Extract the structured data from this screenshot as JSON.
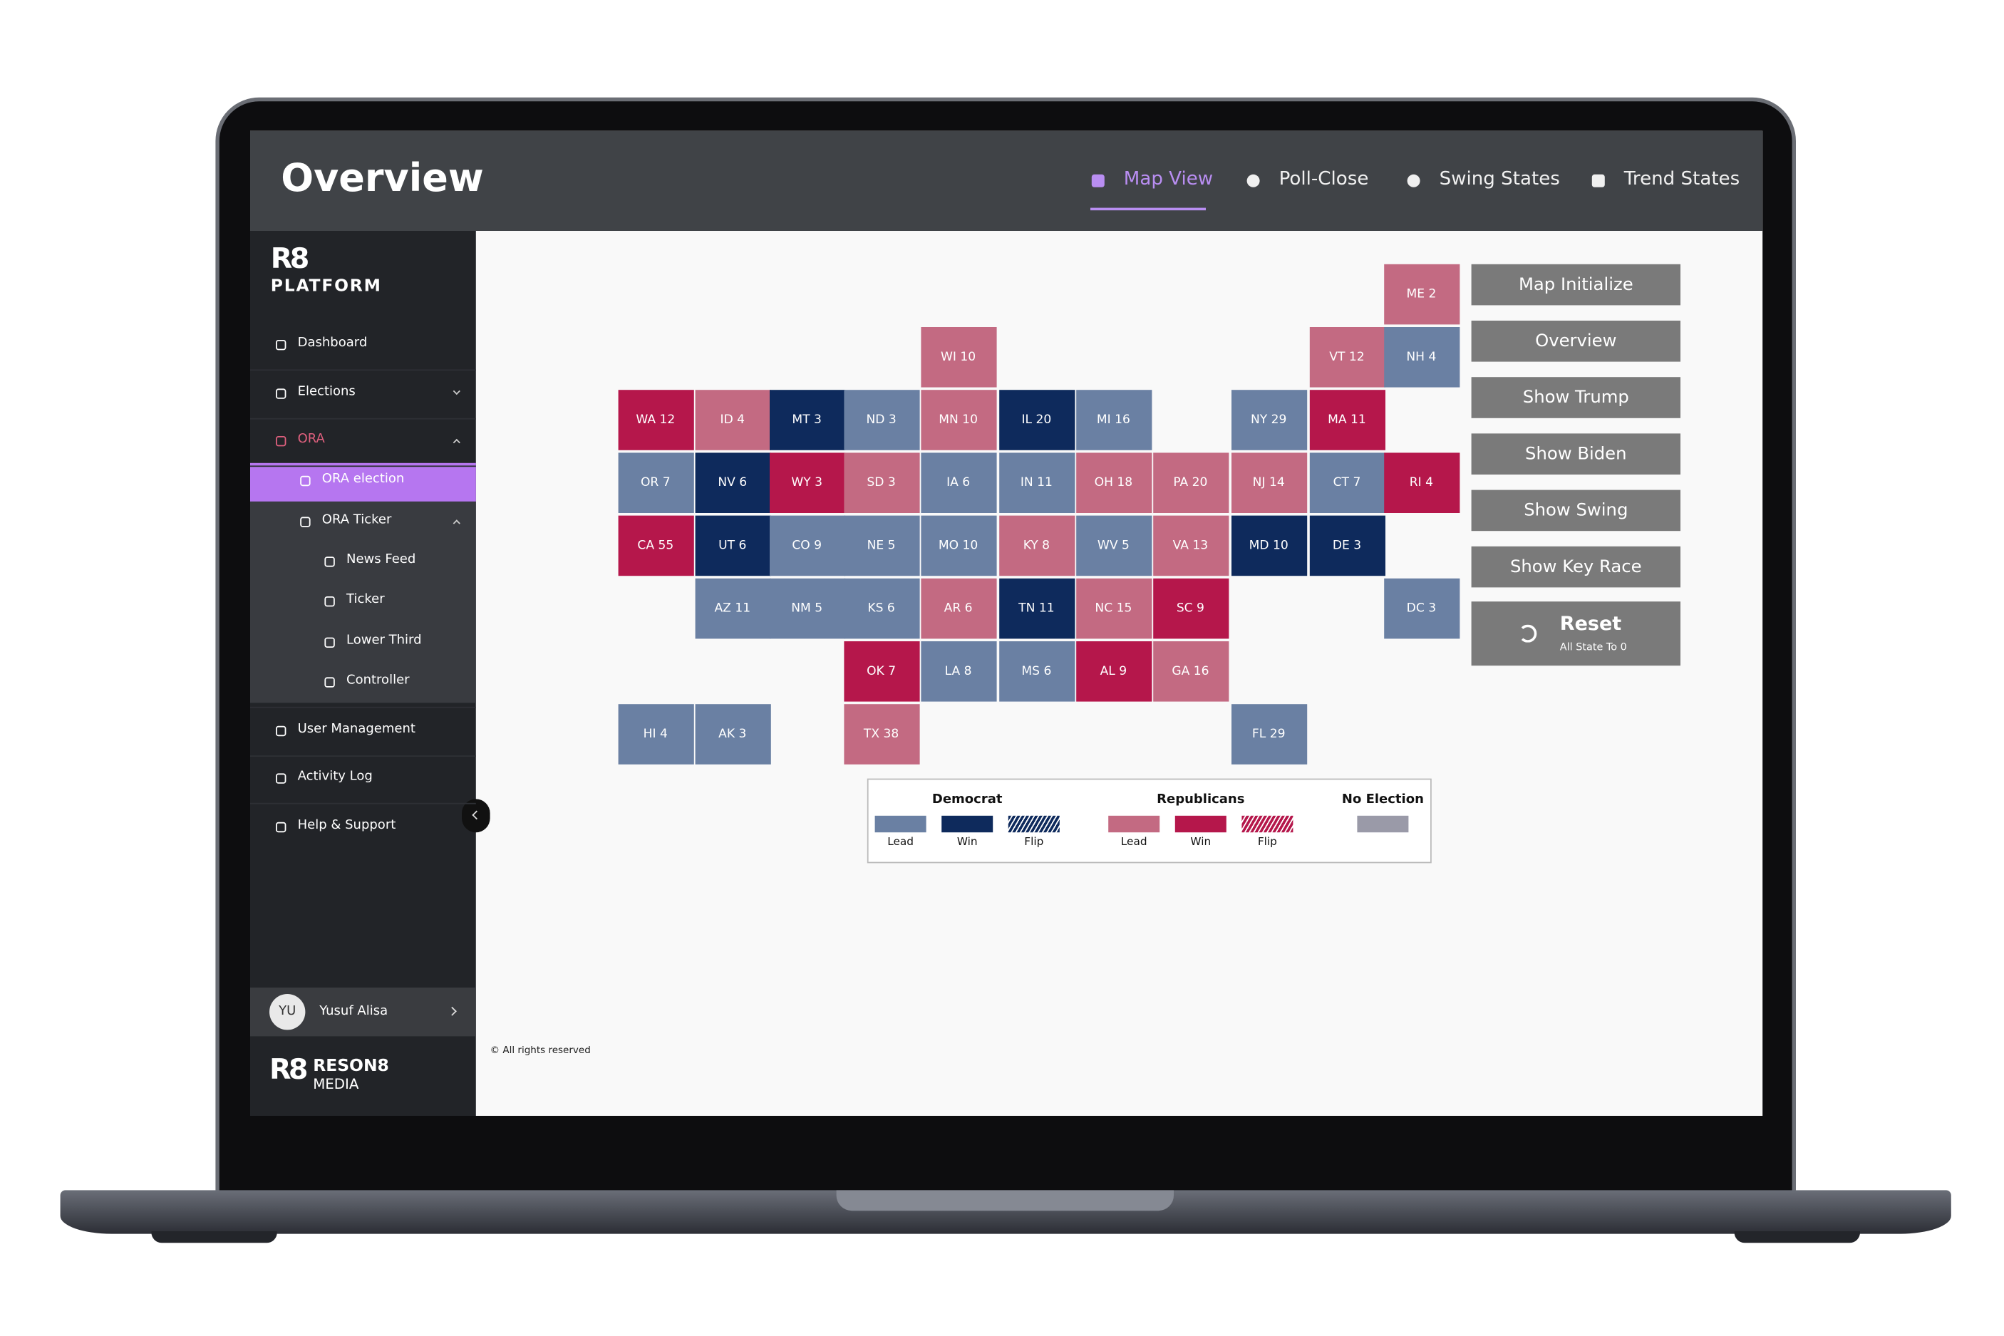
{
  "header": {
    "title": "Overview",
    "tabs": [
      "Map View",
      "Poll-Close",
      "Swing States",
      "Trend States"
    ]
  },
  "sidebar": {
    "brand": {
      "logo": "R8",
      "name": "PLATFORM"
    },
    "nav": [
      "Dashboard",
      "Elections",
      "ORA",
      "ORA election",
      "ORA Ticker",
      "News Feed",
      "Ticker",
      "Lower Third",
      "Controller",
      "User Management",
      "Activity Log",
      "Help & Support"
    ],
    "user": {
      "initials": "YU",
      "name": "Yusuf Alisa"
    },
    "footer_brand": {
      "logo": "R8",
      "name": "RESON8",
      "sub": "MEDIA"
    }
  },
  "map": {
    "states": [
      {
        "label": "ME 2",
        "color": "#c36a82"
      },
      {
        "label": "WI 10",
        "color": "#c36a82"
      },
      {
        "label": "VT 12",
        "color": "#c36a82"
      },
      {
        "label": "NH 4",
        "color": "#6a80a3"
      },
      {
        "label": "WA 12",
        "color": "#b5174b"
      },
      {
        "label": "ID 4",
        "color": "#c36a82"
      },
      {
        "label": "MT 3",
        "color": "#0e2a5c"
      },
      {
        "label": "ND 3",
        "color": "#6a80a3"
      },
      {
        "label": "MN 10",
        "color": "#c36a82"
      },
      {
        "label": "IL 20",
        "color": "#0e2a5c"
      },
      {
        "label": "MI 16",
        "color": "#6a80a3"
      },
      {
        "label": "NY 29",
        "color": "#6a80a3"
      },
      {
        "label": "MA 11",
        "color": "#b5174b"
      },
      {
        "label": "OR 7",
        "color": "#6a80a3"
      },
      {
        "label": "NV 6",
        "color": "#0e2a5c"
      },
      {
        "label": "WY 3",
        "color": "#b5174b"
      },
      {
        "label": "SD 3",
        "color": "#c36a82"
      },
      {
        "label": "IA 6",
        "color": "#6a80a3"
      },
      {
        "label": "IN 11",
        "color": "#6a80a3"
      },
      {
        "label": "OH 18",
        "color": "#c36a82"
      },
      {
        "label": "PA 20",
        "color": "#c36a82"
      },
      {
        "label": "NJ 14",
        "color": "#c36a82"
      },
      {
        "label": "CT 7",
        "color": "#6a80a3"
      },
      {
        "label": "RI 4",
        "color": "#b5174b"
      },
      {
        "label": "CA 55",
        "color": "#b5174b"
      },
      {
        "label": "UT 6",
        "color": "#0e2a5c"
      },
      {
        "label": "CO 9",
        "color": "#6a80a3"
      },
      {
        "label": "NE 5",
        "color": "#6a80a3"
      },
      {
        "label": "MO 10",
        "color": "#6a80a3"
      },
      {
        "label": "KY 8",
        "color": "#c36a82"
      },
      {
        "label": "WV 5",
        "color": "#6a80a3"
      },
      {
        "label": "VA 13",
        "color": "#c36a82"
      },
      {
        "label": "MD 10",
        "color": "#0e2a5c"
      },
      {
        "label": "DE 3",
        "color": "#0e2a5c"
      },
      {
        "label": "AZ 11",
        "color": "#6a80a3"
      },
      {
        "label": "NM 5",
        "color": "#6a80a3"
      },
      {
        "label": "KS 6",
        "color": "#6a80a3"
      },
      {
        "label": "AR 6",
        "color": "#c36a82"
      },
      {
        "label": "TN 11",
        "color": "#0e2a5c"
      },
      {
        "label": "NC 15",
        "color": "#c36a82"
      },
      {
        "label": "SC 9",
        "color": "#b5174b"
      },
      {
        "label": "DC 3",
        "color": "#6a80a3"
      },
      {
        "label": "OK 7",
        "color": "#b5174b"
      },
      {
        "label": "LA 8",
        "color": "#6a80a3"
      },
      {
        "label": "MS 6",
        "color": "#6a80a3"
      },
      {
        "label": "AL 9",
        "color": "#b5174b"
      },
      {
        "label": "GA 16",
        "color": "#c36a82"
      },
      {
        "label": "HI 4",
        "color": "#6a80a3"
      },
      {
        "label": "AK 3",
        "color": "#6a80a3"
      },
      {
        "label": "TX 38",
        "color": "#c36a82"
      },
      {
        "label": "FL 29",
        "color": "#6a80a3"
      }
    ]
  },
  "legend": {
    "groups": [
      {
        "title": "Democrat",
        "items": [
          {
            "label": "Lead",
            "color": "#6a80a3"
          },
          {
            "label": "Win",
            "color": "#0e2a5c"
          },
          {
            "label": "Flip",
            "color": "#0e2a5c"
          }
        ]
      },
      {
        "title": "Republicans",
        "items": [
          {
            "label": "Lead",
            "color": "#c36a82"
          },
          {
            "label": "Win",
            "color": "#b5174b"
          },
          {
            "label": "Flip",
            "color": "#b5174b"
          }
        ]
      },
      {
        "title": "No Election",
        "items": [
          {
            "color": "#9a9aa8"
          }
        ]
      }
    ]
  },
  "actions": {
    "buttons": [
      "Map Initialize",
      "Overview",
      "Show Trump",
      "Show Biden",
      "Show Swing",
      "Show Key Race"
    ],
    "reset": {
      "label": "Reset",
      "sub": "All State To 0"
    }
  },
  "footer": "© All rights reserved"
}
